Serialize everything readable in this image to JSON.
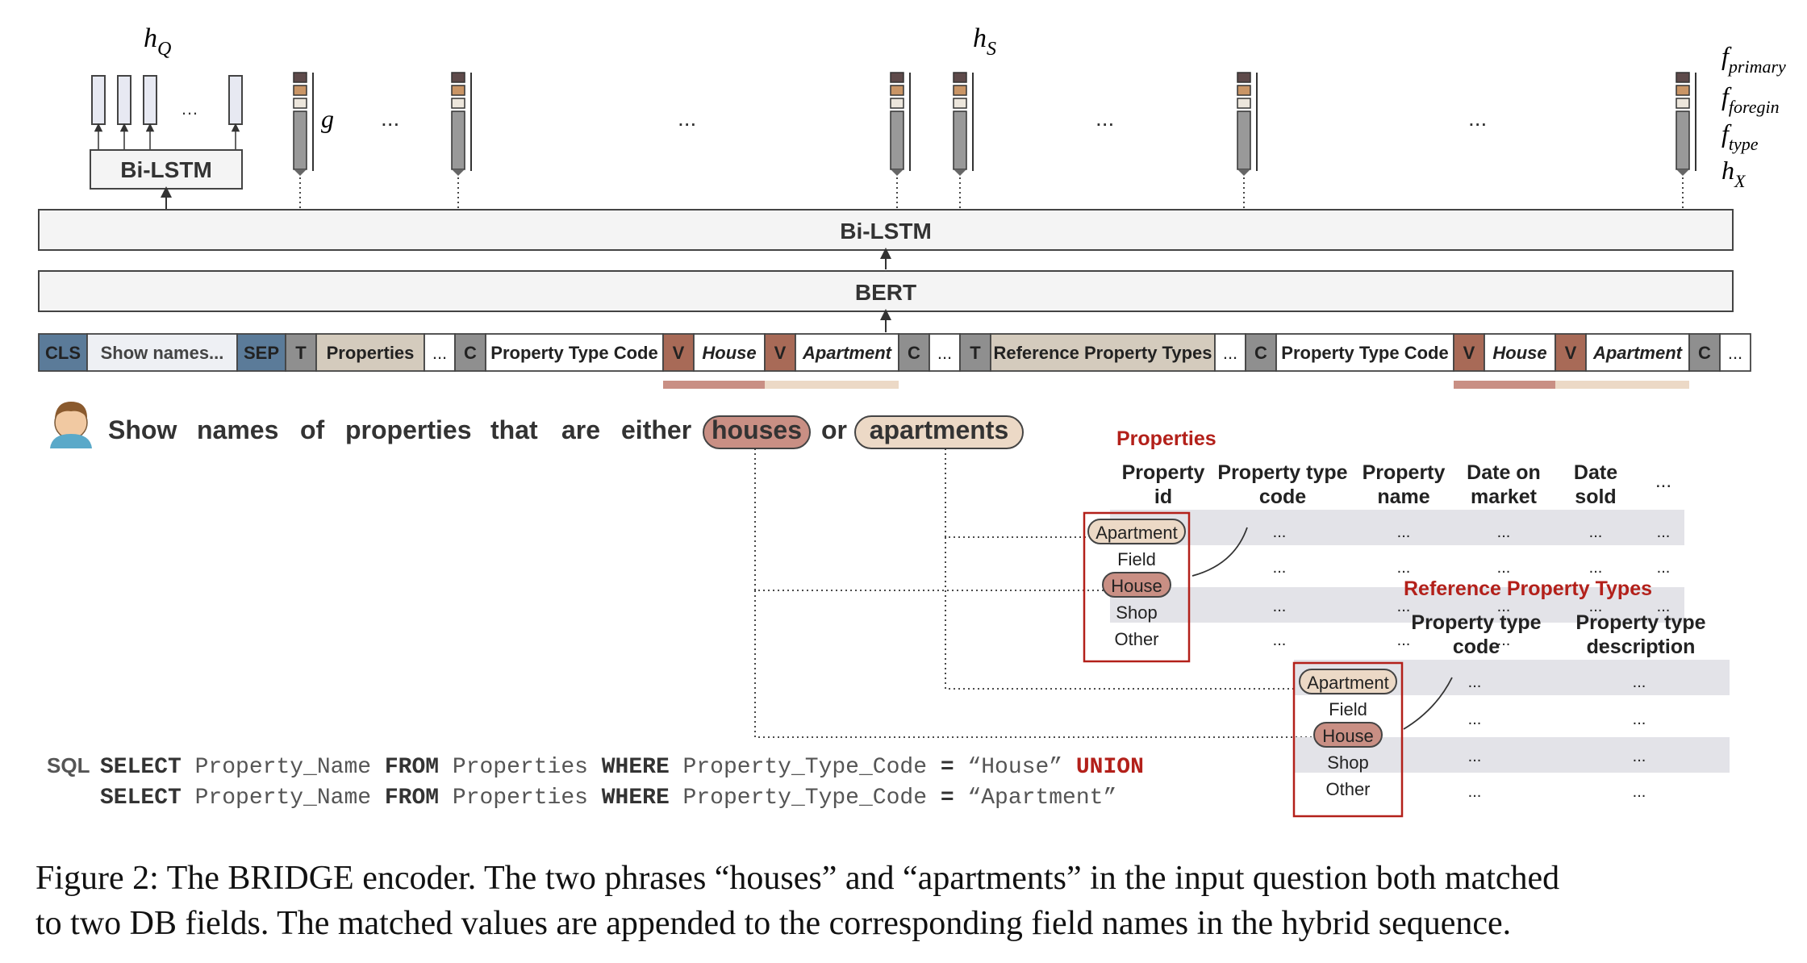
{
  "encoder": {
    "h_q": "h",
    "h_q_sub": "Q",
    "h_s": "h",
    "h_s_sub": "S",
    "g": "g",
    "dots": "...",
    "small_dots": "…",
    "bilstm_small": "Bi-LSTM",
    "bilstm": "Bi-LSTM",
    "bert": "BERT",
    "features": [
      {
        "main": "f",
        "sub": "primary"
      },
      {
        "main": "f",
        "sub": "foregin"
      },
      {
        "main": "f",
        "sub": "type"
      },
      {
        "main": "h",
        "sub": "X"
      }
    ]
  },
  "tokens": [
    {
      "label": "CLS",
      "kind": "cls"
    },
    {
      "label": "Show names...",
      "kind": "question"
    },
    {
      "label": "SEP",
      "kind": "sep"
    },
    {
      "label": "T",
      "kind": "marker"
    },
    {
      "label": "Properties",
      "kind": "table"
    },
    {
      "label": "...",
      "kind": "plain"
    },
    {
      "label": "C",
      "kind": "marker"
    },
    {
      "label": "Property Type Code",
      "kind": "plain"
    },
    {
      "label": "V",
      "kind": "v"
    },
    {
      "label": "House",
      "kind": "value"
    },
    {
      "label": "V",
      "kind": "v"
    },
    {
      "label": "Apartment",
      "kind": "value"
    },
    {
      "label": "C",
      "kind": "marker"
    },
    {
      "label": "...",
      "kind": "plain"
    },
    {
      "label": "T",
      "kind": "marker"
    },
    {
      "label": "Reference Property Types",
      "kind": "table"
    },
    {
      "label": "...",
      "kind": "plain"
    },
    {
      "label": "C",
      "kind": "marker"
    },
    {
      "label": "Property Type Code",
      "kind": "plain"
    },
    {
      "label": "V",
      "kind": "v"
    },
    {
      "label": "House",
      "kind": "value"
    },
    {
      "label": "V",
      "kind": "v"
    },
    {
      "label": "Apartment",
      "kind": "value"
    },
    {
      "label": "C",
      "kind": "marker"
    },
    {
      "label": "...",
      "kind": "plain"
    }
  ],
  "question": {
    "words": [
      "Show",
      "names",
      "of",
      "properties",
      "that",
      "are",
      "either"
    ],
    "match1": "houses",
    "or": "or",
    "match2": "apartments"
  },
  "properties_table": {
    "title": "Properties",
    "headers": [
      [
        "Property",
        "id"
      ],
      [
        "Property type",
        "code"
      ],
      [
        "Property",
        "name"
      ],
      [
        "Date on",
        "market"
      ],
      [
        "Date",
        "sold"
      ]
    ],
    "more": "...",
    "values": [
      "Apartment",
      "Field",
      "House",
      "Shop",
      "Other"
    ],
    "cell": "..."
  },
  "reference_table": {
    "title": "Reference Property Types",
    "headers": [
      [
        "Property type",
        "code"
      ],
      [
        "Property type",
        "description"
      ]
    ],
    "values": [
      "Apartment",
      "Field",
      "House",
      "Shop",
      "Other"
    ],
    "cell": "..."
  },
  "sql": {
    "label": "SQL",
    "line1": [
      {
        "t": "SELECT",
        "k": "kw"
      },
      {
        "t": " Property_Name ",
        "k": "id"
      },
      {
        "t": "FROM",
        "k": "kw"
      },
      {
        "t": " Properties ",
        "k": "id"
      },
      {
        "t": "WHERE",
        "k": "kw"
      },
      {
        "t": " Property_Type_Code ",
        "k": "id"
      },
      {
        "t": "=",
        "k": "kw"
      },
      {
        "t": " “House” ",
        "k": "id"
      },
      {
        "t": "UNION",
        "k": "union"
      }
    ],
    "line2": [
      {
        "t": "SELECT",
        "k": "kw"
      },
      {
        "t": " Property_Name ",
        "k": "id"
      },
      {
        "t": "FROM",
        "k": "kw"
      },
      {
        "t": " Properties ",
        "k": "id"
      },
      {
        "t": "WHERE",
        "k": "kw"
      },
      {
        "t": " Property_Type_Code ",
        "k": "id"
      },
      {
        "t": "=",
        "k": "kw"
      },
      {
        "t": " “Apartment”",
        "k": "id"
      }
    ]
  },
  "caption": {
    "line1": "Figure 2: The BRIDGE encoder. The two phrases “houses” and “apartments” in the input question both matched",
    "line2": "to two DB fields. The matched values are appended to the corresponding field names in the hybrid sequence."
  },
  "colors": {
    "cls": "#5b7b99",
    "sep": "#5b7b99",
    "marker": "#8f8f8f",
    "table": "#d4cbbd",
    "v": "#a86a57",
    "house": "#c98f84",
    "apartment": "#ecd9c6",
    "red": "#b3201a",
    "grey_row": "#e3e3e8",
    "box": "#f4f4f4",
    "qtoken": "#eef0f4"
  }
}
